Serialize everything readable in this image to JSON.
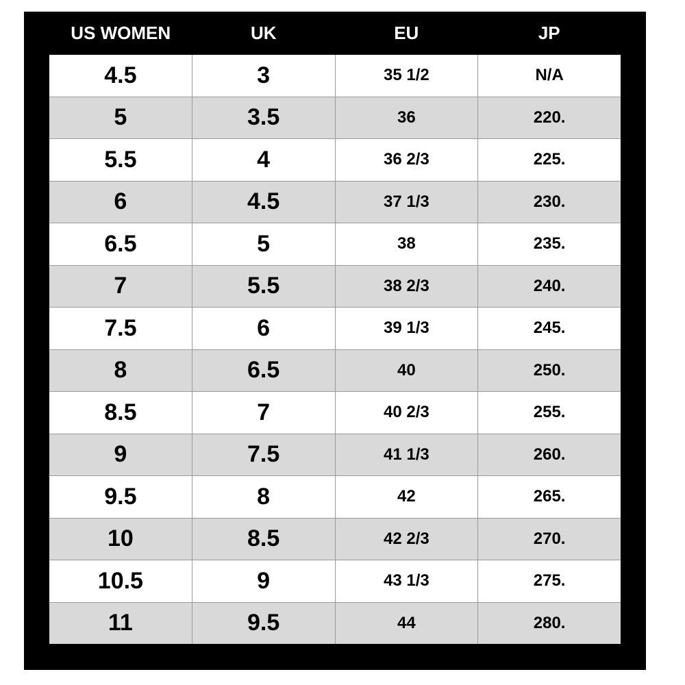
{
  "table": {
    "header": [
      "US WOMEN",
      "UK",
      "EU",
      "JP"
    ],
    "rows": [
      [
        "4.5",
        "3",
        "35 1/2",
        "N/A"
      ],
      [
        "5",
        "3.5",
        "36",
        "220."
      ],
      [
        "5.5",
        "4",
        "36 2/3",
        "225."
      ],
      [
        "6",
        "4.5",
        "37 1/3",
        "230."
      ],
      [
        "6.5",
        "5",
        "38",
        "235."
      ],
      [
        "7",
        "5.5",
        "38 2/3",
        "240."
      ],
      [
        "7.5",
        "6",
        "39 1/3",
        "245."
      ],
      [
        "8",
        "6.5",
        "40",
        "250."
      ],
      [
        "8.5",
        "7",
        "40 2/3",
        "255."
      ],
      [
        "9",
        "7.5",
        "41 1/3",
        "260."
      ],
      [
        "9.5",
        "8",
        "42",
        "265."
      ],
      [
        "10",
        "8.5",
        "42 2/3",
        "270."
      ],
      [
        "10.5",
        "9",
        "43 1/3",
        "275."
      ],
      [
        "11",
        "9.5",
        "44",
        "280."
      ]
    ]
  }
}
